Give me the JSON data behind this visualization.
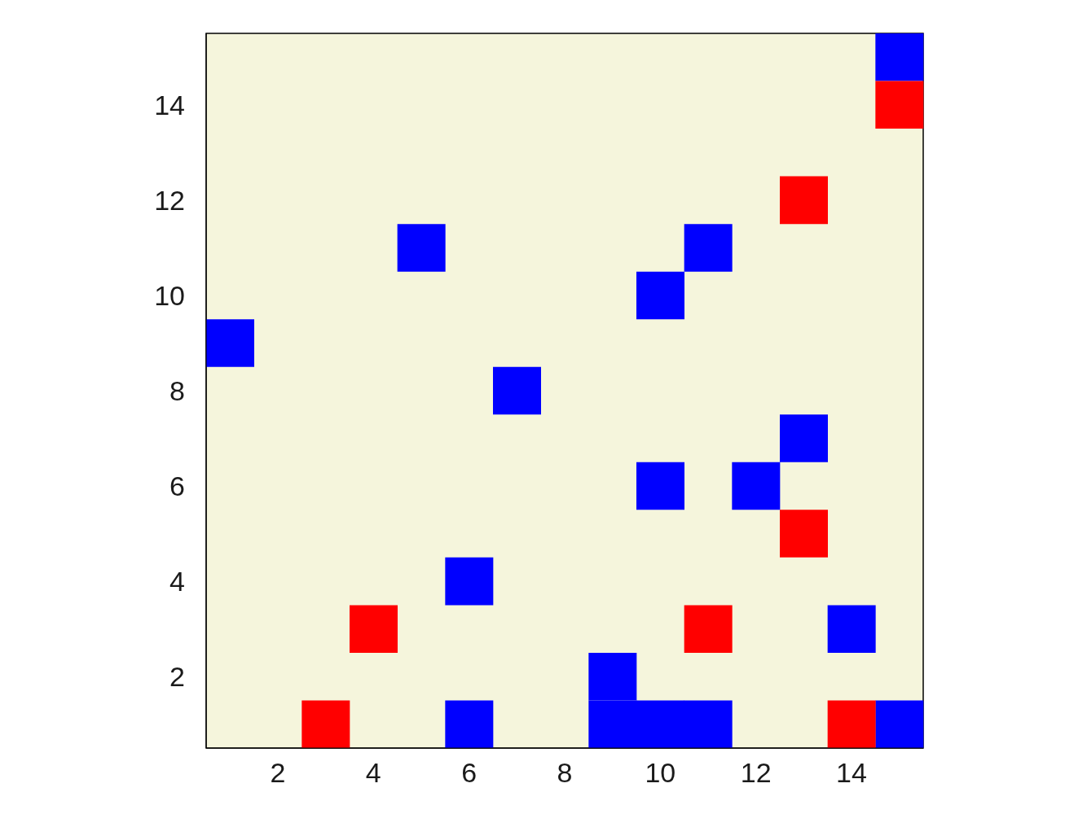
{
  "chart_data": {
    "type": "bar",
    "categories": [
      null,
      "2",
      null,
      "4",
      null,
      "6",
      null,
      "8",
      null,
      "10",
      null,
      "12",
      null,
      "14",
      null
    ],
    "ylim": [
      0.5,
      15.5
    ],
    "yticks": [
      2,
      4,
      6,
      8,
      10,
      12,
      14
    ],
    "series": [
      {
        "color": "#0000ff",
        "base": [
          8.5,
          null,
          null,
          null,
          10.5,
          3.5,
          7.5,
          null,
          1.5,
          9.5,
          10.5,
          5.5,
          6.5,
          2.5,
          14.5
        ],
        "values": [
          1,
          null,
          null,
          null,
          1,
          1,
          1,
          null,
          1,
          1,
          1,
          1,
          1,
          1,
          1
        ]
      },
      {
        "color": "#0000ff",
        "base": [
          null,
          null,
          null,
          null,
          null,
          0.5,
          null,
          null,
          0.5,
          5.5,
          0.5,
          null,
          null,
          null,
          0.5
        ],
        "values": [
          null,
          null,
          null,
          null,
          null,
          1,
          null,
          null,
          1,
          1,
          1,
          null,
          null,
          null,
          1
        ]
      },
      {
        "color": "#0000ff",
        "base": [
          null,
          null,
          null,
          null,
          null,
          null,
          null,
          null,
          null,
          0.5,
          null,
          null,
          null,
          null,
          null
        ],
        "values": [
          null,
          null,
          null,
          null,
          null,
          null,
          null,
          null,
          null,
          1,
          null,
          null,
          null,
          null,
          null
        ]
      },
      {
        "color": "#ff0000",
        "base": [
          null,
          null,
          0.5,
          2.5,
          null,
          null,
          null,
          null,
          null,
          null,
          2.5,
          null,
          11.5,
          0.5,
          13.5
        ],
        "values": [
          null,
          null,
          1,
          1,
          null,
          null,
          null,
          null,
          null,
          null,
          1,
          null,
          1,
          1,
          1
        ]
      },
      {
        "color": "#ff0000",
        "base": [
          null,
          null,
          null,
          null,
          null,
          null,
          null,
          null,
          null,
          null,
          null,
          null,
          4.5,
          null,
          null
        ],
        "values": [
          null,
          null,
          null,
          null,
          null,
          null,
          null,
          null,
          null,
          null,
          null,
          null,
          1,
          null,
          null
        ]
      }
    ]
  }
}
